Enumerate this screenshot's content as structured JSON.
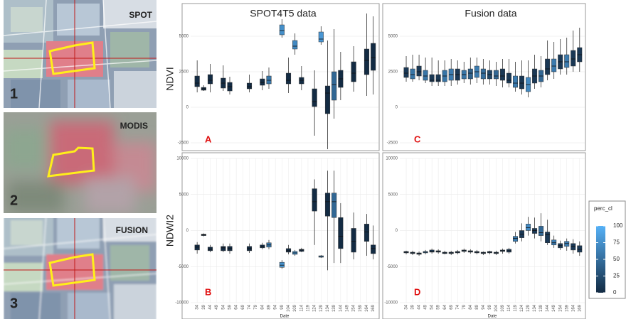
{
  "images": [
    {
      "label": "SPOT",
      "number": "1"
    },
    {
      "label": "MODIS",
      "number": "2"
    },
    {
      "label": "FUSION",
      "number": "3"
    }
  ],
  "chart_data": [
    {
      "type": "box",
      "title": "SPOT4T5 data",
      "y_label": "NDVI",
      "annotation": "A",
      "xlim": [
        29,
        173
      ],
      "ylim": [
        -3000,
        7000
      ],
      "yticks": [
        -2500,
        0,
        2500,
        5000
      ],
      "grid": true,
      "boxes": [
        {
          "x": 34,
          "min": 1050,
          "q1": 1450,
          "median": 1700,
          "q3": 2200,
          "max": 3300,
          "perc_cl": 0
        },
        {
          "x": 39,
          "min": 1150,
          "q1": 1200,
          "median": 1300,
          "q3": 1400,
          "max": 1550,
          "perc_cl": 0
        },
        {
          "x": 44,
          "min": 1050,
          "q1": 1650,
          "median": 1900,
          "q3": 2300,
          "max": 3050,
          "perc_cl": 0
        },
        {
          "x": 54,
          "min": 1150,
          "q1": 1350,
          "median": 1700,
          "q3": 2050,
          "max": 2950,
          "perc_cl": 0
        },
        {
          "x": 59,
          "min": 900,
          "q1": 1150,
          "median": 1450,
          "q3": 1750,
          "max": 2150,
          "perc_cl": 0
        },
        {
          "x": 74,
          "min": 1050,
          "q1": 1300,
          "median": 1450,
          "q3": 1700,
          "max": 2300,
          "perc_cl": 0
        },
        {
          "x": 84,
          "min": 1200,
          "q1": 1550,
          "median": 1750,
          "q3": 2000,
          "max": 2550,
          "perc_cl": 0
        },
        {
          "x": 89,
          "min": 1300,
          "q1": 1650,
          "median": 1900,
          "q3": 2200,
          "max": 2800,
          "perc_cl": 55
        },
        {
          "x": 99,
          "min": 4900,
          "q1": 5100,
          "median": 5400,
          "q3": 5800,
          "max": 6200,
          "perc_cl": 75
        },
        {
          "x": 104,
          "min": 1000,
          "q1": 1650,
          "median": 1900,
          "q3": 2400,
          "max": 3500,
          "perc_cl": 0
        },
        {
          "x": 109,
          "min": 3700,
          "q1": 4100,
          "median": 4300,
          "q3": 4700,
          "max": 5200,
          "perc_cl": 70
        },
        {
          "x": 114,
          "min": 1200,
          "q1": 1650,
          "median": 1900,
          "q3": 2100,
          "max": 2900,
          "perc_cl": 0
        },
        {
          "x": 124,
          "min": -2000,
          "q1": 50,
          "median": 400,
          "q3": 1300,
          "max": 2600,
          "perc_cl": 0
        },
        {
          "x": 129,
          "min": 4400,
          "q1": 4600,
          "median": 4800,
          "q3": 5300,
          "max": 5700,
          "perc_cl": 80
        },
        {
          "x": 134,
          "min": -2950,
          "q1": -450,
          "median": 1000,
          "q3": 1500,
          "max": 4700,
          "perc_cl": 0
        },
        {
          "x": 139,
          "min": -800,
          "q1": 500,
          "median": 1600,
          "q3": 2500,
          "max": 5500,
          "perc_cl": 45
        },
        {
          "x": 144,
          "min": 500,
          "q1": 1400,
          "median": 2000,
          "q3": 2600,
          "max": 3900,
          "perc_cl": 0
        },
        {
          "x": 154,
          "min": 1100,
          "q1": 1800,
          "median": 2400,
          "q3": 3200,
          "max": 4300,
          "perc_cl": 0
        },
        {
          "x": 164,
          "min": 800,
          "q1": 2300,
          "median": 3300,
          "q3": 4100,
          "max": 6600,
          "perc_cl": 0
        },
        {
          "x": 169,
          "min": 900,
          "q1": 2600,
          "median": 3500,
          "q3": 4500,
          "max": 6400,
          "perc_cl": 0
        }
      ]
    },
    {
      "type": "box",
      "title": "Fusion data",
      "annotation": "C",
      "xlim": [
        29,
        173
      ],
      "ylim": [
        -3000,
        7000
      ],
      "yticks": [
        -2500,
        0,
        2500,
        5000
      ],
      "grid": true,
      "boxes": [
        {
          "x": 34,
          "min": 1800,
          "q1": 2100,
          "median": 2400,
          "q3": 2800,
          "max": 3600,
          "perc_cl": 10
        },
        {
          "x": 39,
          "min": 1800,
          "q1": 2000,
          "median": 2300,
          "q3": 2700,
          "max": 3700,
          "perc_cl": 55
        },
        {
          "x": 44,
          "min": 1900,
          "q1": 2200,
          "median": 2500,
          "q3": 2900,
          "max": 3700,
          "perc_cl": 10
        },
        {
          "x": 49,
          "min": 1700,
          "q1": 1900,
          "median": 2200,
          "q3": 2600,
          "max": 3500,
          "perc_cl": 55
        },
        {
          "x": 54,
          "min": 1500,
          "q1": 1800,
          "median": 1900,
          "q3": 2300,
          "max": 3500,
          "perc_cl": 10
        },
        {
          "x": 59,
          "min": 1500,
          "q1": 1800,
          "median": 1900,
          "q3": 2300,
          "max": 3300,
          "perc_cl": 10
        },
        {
          "x": 64,
          "min": 1500,
          "q1": 1800,
          "median": 2200,
          "q3": 2600,
          "max": 3300,
          "perc_cl": 55
        },
        {
          "x": 69,
          "min": 1500,
          "q1": 1900,
          "median": 2300,
          "q3": 2700,
          "max": 3400,
          "perc_cl": 60
        },
        {
          "x": 74,
          "min": 1600,
          "q1": 1900,
          "median": 2300,
          "q3": 2700,
          "max": 3300,
          "perc_cl": 10
        },
        {
          "x": 79,
          "min": 1700,
          "q1": 2000,
          "median": 2300,
          "q3": 2600,
          "max": 3200,
          "perc_cl": 55
        },
        {
          "x": 84,
          "min": 1600,
          "q1": 2000,
          "median": 2400,
          "q3": 2700,
          "max": 3500,
          "perc_cl": 40
        },
        {
          "x": 89,
          "min": 1700,
          "q1": 2100,
          "median": 2500,
          "q3": 2900,
          "max": 3500,
          "perc_cl": 60
        },
        {
          "x": 94,
          "min": 1600,
          "q1": 2000,
          "median": 2400,
          "q3": 2700,
          "max": 3400,
          "perc_cl": 50
        },
        {
          "x": 99,
          "min": 1600,
          "q1": 2000,
          "median": 2300,
          "q3": 2600,
          "max": 3300,
          "perc_cl": 20
        },
        {
          "x": 104,
          "min": 1500,
          "q1": 2000,
          "median": 2200,
          "q3": 2600,
          "max": 3200,
          "perc_cl": 45
        },
        {
          "x": 109,
          "min": 1400,
          "q1": 1900,
          "median": 2200,
          "q3": 2700,
          "max": 3400,
          "perc_cl": 10
        },
        {
          "x": 114,
          "min": 1400,
          "q1": 1700,
          "median": 1900,
          "q3": 2400,
          "max": 3400,
          "perc_cl": 10
        },
        {
          "x": 119,
          "min": 1100,
          "q1": 1400,
          "median": 1700,
          "q3": 2200,
          "max": 3200,
          "perc_cl": 60
        },
        {
          "x": 124,
          "min": 900,
          "q1": 1300,
          "median": 1700,
          "q3": 2200,
          "max": 3300,
          "perc_cl": 10
        },
        {
          "x": 129,
          "min": 700,
          "q1": 1100,
          "median": 1600,
          "q3": 2100,
          "max": 3300,
          "perc_cl": 70
        },
        {
          "x": 134,
          "min": 1300,
          "q1": 1700,
          "median": 2200,
          "q3": 2700,
          "max": 3700,
          "perc_cl": 10
        },
        {
          "x": 139,
          "min": 1400,
          "q1": 1800,
          "median": 2200,
          "q3": 2600,
          "max": 3600,
          "perc_cl": 45
        },
        {
          "x": 144,
          "min": 1900,
          "q1": 2300,
          "median": 2700,
          "q3": 3400,
          "max": 4700,
          "perc_cl": 10
        },
        {
          "x": 149,
          "min": 2000,
          "q1": 2500,
          "median": 2900,
          "q3": 3400,
          "max": 4600,
          "perc_cl": 60
        },
        {
          "x": 154,
          "min": 2300,
          "q1": 2700,
          "median": 3200,
          "q3": 3700,
          "max": 4800,
          "perc_cl": 10
        },
        {
          "x": 159,
          "min": 2300,
          "q1": 2800,
          "median": 3200,
          "q3": 3700,
          "max": 4900,
          "perc_cl": 60
        },
        {
          "x": 164,
          "min": 2500,
          "q1": 2900,
          "median": 3400,
          "q3": 4000,
          "max": 5400,
          "perc_cl": 10
        },
        {
          "x": 169,
          "min": 2500,
          "q1": 3200,
          "median": 3700,
          "q3": 4200,
          "max": 5600,
          "perc_cl": 10
        }
      ]
    },
    {
      "type": "box",
      "y_label": "NDWI2",
      "annotation": "B",
      "x_label": "Date",
      "xlim": [
        29,
        173
      ],
      "xticks": [
        34,
        39,
        44,
        49,
        54,
        59,
        64,
        69,
        74,
        79,
        84,
        89,
        94,
        99,
        104,
        109,
        114,
        119,
        124,
        129,
        134,
        139,
        144,
        149,
        154,
        159,
        164,
        169
      ],
      "ylim": [
        -10000,
        10000
      ],
      "yticks": [
        -10000,
        -5000,
        0,
        5000,
        10000
      ],
      "grid": true,
      "boxes": [
        {
          "x": 34,
          "min": -3200,
          "q1": -2700,
          "median": -2300,
          "q3": -2000,
          "max": -1600,
          "perc_cl": 0
        },
        {
          "x": 39,
          "min": -800,
          "q1": -700,
          "median": -600,
          "q3": -500,
          "max": -400,
          "perc_cl": 0
        },
        {
          "x": 44,
          "min": -3000,
          "q1": -2800,
          "median": -2600,
          "q3": -2300,
          "max": -2000,
          "perc_cl": 0
        },
        {
          "x": 54,
          "min": -3000,
          "q1": -2800,
          "median": -2400,
          "q3": -2200,
          "max": -1800,
          "perc_cl": 0
        },
        {
          "x": 59,
          "min": -3200,
          "q1": -2800,
          "median": -2500,
          "q3": -2200,
          "max": -1800,
          "perc_cl": 0
        },
        {
          "x": 74,
          "min": -3100,
          "q1": -2800,
          "median": -2500,
          "q3": -2200,
          "max": -1800,
          "perc_cl": 0
        },
        {
          "x": 84,
          "min": -2600,
          "q1": -2400,
          "median": -2200,
          "q3": -2000,
          "max": -1700,
          "perc_cl": 0
        },
        {
          "x": 89,
          "min": -2600,
          "q1": -2300,
          "median": -2000,
          "q3": -1700,
          "max": -1300,
          "perc_cl": 55
        },
        {
          "x": 99,
          "min": -5300,
          "q1": -5100,
          "median": -4800,
          "q3": -4400,
          "max": -4100,
          "perc_cl": 75
        },
        {
          "x": 104,
          "min": -3300,
          "q1": -3000,
          "median": -2800,
          "q3": -2500,
          "max": -2000,
          "perc_cl": 0
        },
        {
          "x": 109,
          "min": -3500,
          "q1": -3300,
          "median": -3100,
          "q3": -2900,
          "max": -2700,
          "perc_cl": 70
        },
        {
          "x": 114,
          "min": -3000,
          "q1": -2900,
          "median": -2700,
          "q3": -2600,
          "max": -2400,
          "perc_cl": 0
        },
        {
          "x": 124,
          "min": -2000,
          "q1": 2700,
          "median": 4000,
          "q3": 5800,
          "max": 7100,
          "perc_cl": 0
        },
        {
          "x": 129,
          "min": -3800,
          "q1": -3700,
          "median": -3600,
          "q3": -3500,
          "max": -3400,
          "perc_cl": 80
        },
        {
          "x": 134,
          "min": -5500,
          "q1": 2000,
          "median": 4000,
          "q3": 5200,
          "max": 8300,
          "perc_cl": 0
        },
        {
          "x": 139,
          "min": -4500,
          "q1": 1800,
          "median": 4000,
          "q3": 5200,
          "max": 8300,
          "perc_cl": 45
        },
        {
          "x": 144,
          "min": -4500,
          "q1": -2500,
          "median": -800,
          "q3": 1800,
          "max": 3800,
          "perc_cl": 0
        },
        {
          "x": 154,
          "min": -4000,
          "q1": -3000,
          "median": -1500,
          "q3": 300,
          "max": 2500,
          "perc_cl": 0
        },
        {
          "x": 164,
          "min": -3500,
          "q1": -1500,
          "median": -200,
          "q3": 900,
          "max": 2300,
          "perc_cl": 0
        },
        {
          "x": 169,
          "min": -4000,
          "q1": -3200,
          "median": -2500,
          "q3": -2000,
          "max": 700,
          "perc_cl": 0
        }
      ]
    },
    {
      "type": "box",
      "annotation": "D",
      "x_label": "Date",
      "xlim": [
        29,
        173
      ],
      "xticks": [
        34,
        39,
        44,
        49,
        54,
        59,
        64,
        69,
        74,
        79,
        84,
        89,
        94,
        99,
        104,
        109,
        114,
        119,
        124,
        129,
        134,
        139,
        144,
        149,
        154,
        159,
        164,
        169
      ],
      "ylim": [
        -10000,
        10000
      ],
      "yticks": [
        -10000,
        -5000,
        0,
        5000,
        10000
      ],
      "grid": true,
      "boxes": [
        {
          "x": 34,
          "min": -3300,
          "q1": -3100,
          "median": -3000,
          "q3": -2900,
          "max": -2800,
          "perc_cl": 10
        },
        {
          "x": 39,
          "min": -3400,
          "q1": -3200,
          "median": -3100,
          "q3": -3000,
          "max": -2800,
          "perc_cl": 10
        },
        {
          "x": 44,
          "min": -3500,
          "q1": -3300,
          "median": -3200,
          "q3": -3100,
          "max": -2900,
          "perc_cl": 10
        },
        {
          "x": 49,
          "min": -3300,
          "q1": -3100,
          "median": -3000,
          "q3": -2900,
          "max": -2700,
          "perc_cl": 55
        },
        {
          "x": 54,
          "min": -3200,
          "q1": -3000,
          "median": -2900,
          "q3": -2700,
          "max": -2500,
          "perc_cl": 10
        },
        {
          "x": 59,
          "min": -3200,
          "q1": -3000,
          "median": -2900,
          "q3": -2800,
          "max": -2600,
          "perc_cl": 10
        },
        {
          "x": 64,
          "min": -3300,
          "q1": -3200,
          "median": -3100,
          "q3": -3000,
          "max": -2800,
          "perc_cl": 10
        },
        {
          "x": 69,
          "min": -3400,
          "q1": -3200,
          "median": -3100,
          "q3": -3000,
          "max": -2800,
          "perc_cl": 10
        },
        {
          "x": 74,
          "min": -3300,
          "q1": -3100,
          "median": -3000,
          "q3": -2900,
          "max": -2700,
          "perc_cl": 10
        },
        {
          "x": 79,
          "min": -3100,
          "q1": -2900,
          "median": -2800,
          "q3": -2700,
          "max": -2500,
          "perc_cl": 10
        },
        {
          "x": 84,
          "min": -3200,
          "q1": -3000,
          "median": -2900,
          "q3": -2800,
          "max": -2600,
          "perc_cl": 10
        },
        {
          "x": 89,
          "min": -3300,
          "q1": -3100,
          "median": -3000,
          "q3": -2900,
          "max": -2700,
          "perc_cl": 10
        },
        {
          "x": 94,
          "min": -3400,
          "q1": -3200,
          "median": -3100,
          "q3": -3000,
          "max": -2900,
          "perc_cl": 10
        },
        {
          "x": 99,
          "min": -3300,
          "q1": -3100,
          "median": -3000,
          "q3": -2900,
          "max": -2800,
          "perc_cl": 10
        },
        {
          "x": 104,
          "min": -3400,
          "q1": -3200,
          "median": -3100,
          "q3": -3000,
          "max": -2800,
          "perc_cl": 10
        },
        {
          "x": 109,
          "min": -3200,
          "q1": -2900,
          "median": -2800,
          "q3": -2700,
          "max": -2500,
          "perc_cl": 10
        },
        {
          "x": 114,
          "min": -3200,
          "q1": -3000,
          "median": -2800,
          "q3": -2600,
          "max": -2400,
          "perc_cl": 10
        },
        {
          "x": 119,
          "min": -1800,
          "q1": -1500,
          "median": -1100,
          "q3": -800,
          "max": -200,
          "perc_cl": 60
        },
        {
          "x": 124,
          "min": -1500,
          "q1": -1000,
          "median": -500,
          "q3": 0,
          "max": 1000,
          "perc_cl": 10
        },
        {
          "x": 129,
          "min": -700,
          "q1": 0,
          "median": 400,
          "q3": 900,
          "max": 1900,
          "perc_cl": 70
        },
        {
          "x": 134,
          "min": -1100,
          "q1": -400,
          "median": 0,
          "q3": 300,
          "max": 1800,
          "perc_cl": 10
        },
        {
          "x": 139,
          "min": -1500,
          "q1": -700,
          "median": -300,
          "q3": 600,
          "max": 2400,
          "perc_cl": 45
        },
        {
          "x": 144,
          "min": -2000,
          "q1": -1700,
          "median": -600,
          "q3": -200,
          "max": 1500,
          "perc_cl": 10
        },
        {
          "x": 149,
          "min": -2400,
          "q1": -2000,
          "median": -1700,
          "q3": -1300,
          "max": -700,
          "perc_cl": 60
        },
        {
          "x": 154,
          "min": -2700,
          "q1": -2400,
          "median": -2100,
          "q3": -1800,
          "max": -1400,
          "perc_cl": 10
        },
        {
          "x": 159,
          "min": -2800,
          "q1": -2200,
          "median": -1800,
          "q3": -1500,
          "max": -1100,
          "perc_cl": 60
        },
        {
          "x": 164,
          "min": -3200,
          "q1": -2700,
          "median": -2200,
          "q3": -1800,
          "max": -1200,
          "perc_cl": 10
        },
        {
          "x": 169,
          "min": -3500,
          "q1": -3000,
          "median": -2600,
          "q3": -2100,
          "max": -1500,
          "perc_cl": 10
        }
      ]
    }
  ],
  "colorbar": {
    "title": "perc_cl",
    "lim": [
      0,
      100
    ],
    "ticks": [
      0,
      25,
      50,
      75,
      100
    ],
    "colors": [
      "#132B43",
      "#56B1F7"
    ]
  }
}
